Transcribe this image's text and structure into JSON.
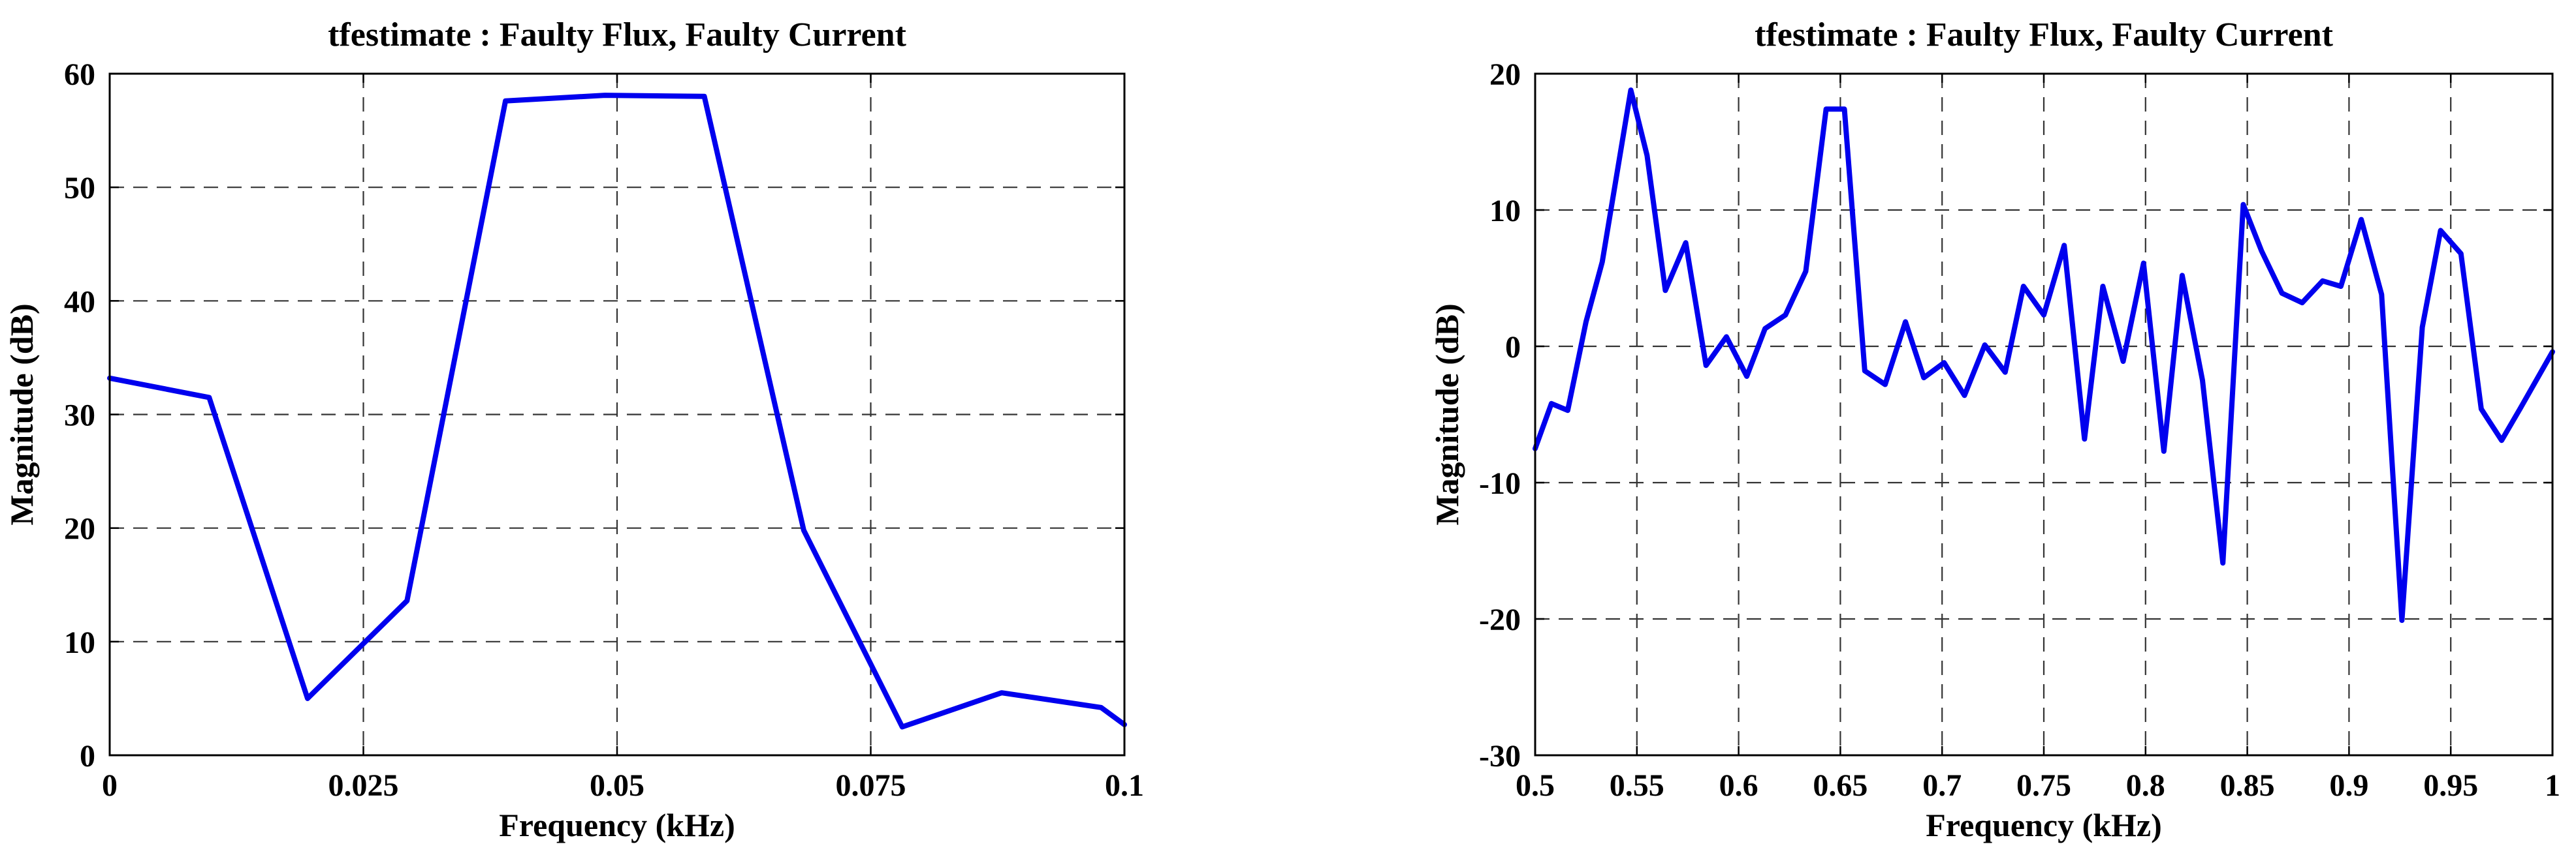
{
  "chart_data": [
    {
      "type": "line",
      "title": "tfestimate : Faulty Flux, Faulty Current",
      "xlabel": "Frequency (kHz)",
      "ylabel": "Magnitude (dB)",
      "xlim": [
        0,
        0.1
      ],
      "ylim": [
        0,
        60
      ],
      "xticks": [
        0,
        0.025,
        0.05,
        0.075,
        0.1
      ],
      "xtick_labels": [
        "0",
        "0.025",
        "0.05",
        "0.075",
        "0.1"
      ],
      "yticks": [
        0,
        10,
        20,
        30,
        40,
        50,
        60
      ],
      "ytick_labels": [
        "0",
        "10",
        "20",
        "30",
        "40",
        "50",
        "60"
      ],
      "grid": true,
      "color": "#0000ee",
      "series": [
        {
          "x": [
            0,
            0.0098,
            0.0195,
            0.0293,
            0.039,
            0.0488,
            0.0586,
            0.0684,
            0.0781,
            0.0879,
            0.0977,
            0.1
          ],
          "y": [
            33.2,
            31.5,
            5.0,
            13.6,
            57.6,
            58.1,
            58.0,
            19.8,
            2.5,
            5.5,
            4.2,
            2.7
          ]
        }
      ]
    },
    {
      "type": "line",
      "title": "tfestimate : Faulty Flux, Faulty Current",
      "xlabel": "Frequency (kHz)",
      "ylabel": "Magnitude (dB)",
      "xlim": [
        0.5,
        1
      ],
      "ylim": [
        -30,
        20
      ],
      "xticks": [
        0.5,
        0.55,
        0.6,
        0.65,
        0.7,
        0.75,
        0.8,
        0.85,
        0.9,
        0.95,
        1
      ],
      "xtick_labels": [
        "0.5",
        "0.55",
        "0.6",
        "0.65",
        "0.7",
        "0.75",
        "0.8",
        "0.85",
        "0.9",
        "0.95",
        "1"
      ],
      "yticks": [
        -30,
        -20,
        -10,
        0,
        10,
        20
      ],
      "ytick_labels": [
        "-30",
        "-20",
        "-10",
        "0",
        "10",
        "20"
      ],
      "grid": true,
      "color": "#0000ee",
      "series": [
        {
          "x": [
            0.5,
            0.508,
            0.516,
            0.525,
            0.533,
            0.547,
            0.555,
            0.564,
            0.574,
            0.584,
            0.594,
            0.604,
            0.613,
            0.623,
            0.633,
            0.643,
            0.652,
            0.662,
            0.672,
            0.682,
            0.691,
            0.701,
            0.711,
            0.721,
            0.731,
            0.74,
            0.75,
            0.76,
            0.77,
            0.779,
            0.789,
            0.799,
            0.809,
            0.818,
            0.828,
            0.838,
            0.848,
            0.857,
            0.867,
            0.877,
            0.887,
            0.896,
            0.906,
            0.916,
            0.926,
            0.936,
            0.945,
            0.955,
            0.965,
            0.975,
            0.984,
            1.0
          ],
          "y": [
            -7.5,
            -4.2,
            -4.7,
            1.8,
            6.2,
            18.8,
            14.0,
            4.1,
            7.6,
            -1.4,
            0.7,
            -2.2,
            1.3,
            2.3,
            5.5,
            17.4,
            17.4,
            -1.8,
            -2.8,
            1.8,
            -2.3,
            -1.2,
            -3.6,
            0.1,
            -1.9,
            4.4,
            2.3,
            7.4,
            -6.8,
            4.4,
            -1.1,
            6.1,
            -7.7,
            5.2,
            -2.5,
            -15.9,
            10.4,
            7.0,
            3.9,
            3.2,
            4.8,
            4.4,
            9.3,
            3.8,
            -20.1,
            1.4,
            8.5,
            6.8,
            -4.6,
            -6.9,
            -4.6,
            -0.4
          ]
        }
      ]
    }
  ]
}
